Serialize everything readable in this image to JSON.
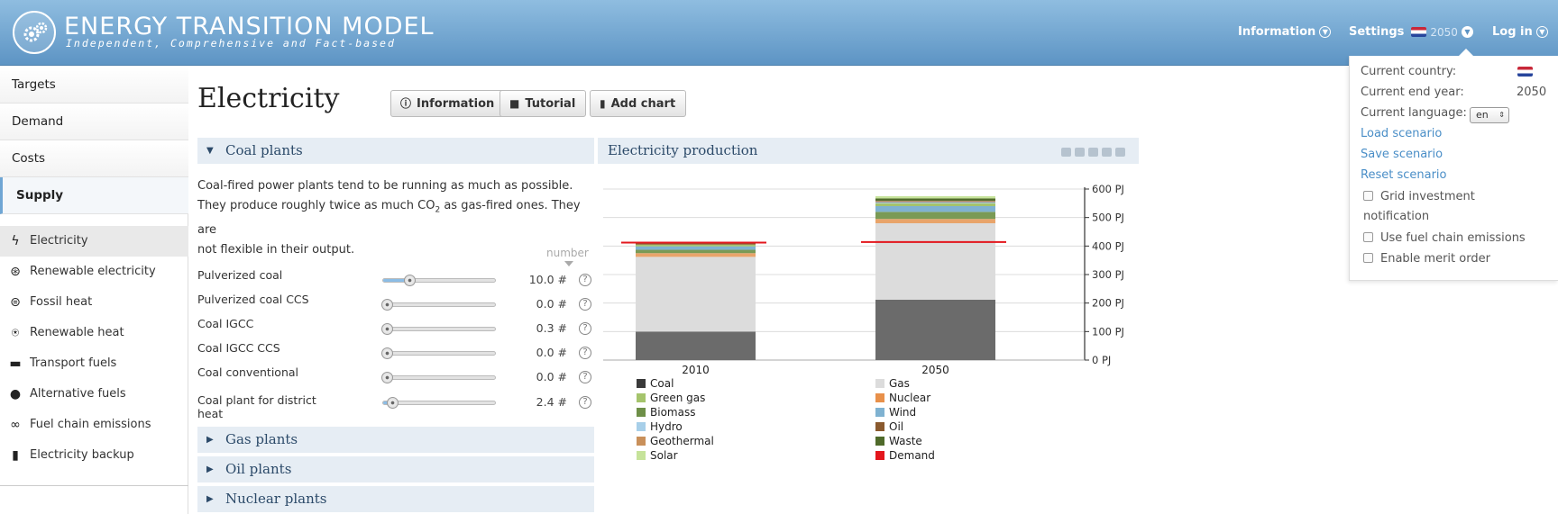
{
  "header": {
    "title": "ENERGY TRANSITION MODEL",
    "subtitle": "Independent, Comprehensive and Fact-based",
    "nav": {
      "information": "Information",
      "settings": "Settings",
      "year": "2050",
      "login": "Log in"
    }
  },
  "settings_panel": {
    "country_label": "Current country:",
    "end_year_label": "Current end year:",
    "end_year_value": "2050",
    "language_label": "Current language:",
    "language_value": "en",
    "load": "Load scenario",
    "save": "Save scenario",
    "reset": "Reset scenario",
    "checks": [
      "Grid investment notification",
      "Use fuel chain emissions",
      "Enable merit order"
    ]
  },
  "sidebar": {
    "tabs": [
      "Targets",
      "Demand",
      "Costs",
      "Supply"
    ],
    "items": [
      {
        "label": "Electricity",
        "icon": "lightning-icon"
      },
      {
        "label": "Renewable electricity",
        "icon": "renewable-electricity-icon"
      },
      {
        "label": "Fossil heat",
        "icon": "fossil-heat-icon"
      },
      {
        "label": "Renewable heat",
        "icon": "renewable-heat-icon"
      },
      {
        "label": "Transport fuels",
        "icon": "car-icon"
      },
      {
        "label": "Alternative fuels",
        "icon": "drop-icon"
      },
      {
        "label": "Fuel chain emissions",
        "icon": "chain-icon"
      },
      {
        "label": "Electricity backup",
        "icon": "battery-icon"
      }
    ]
  },
  "main": {
    "title": "Electricity",
    "buttons": {
      "information": "Information",
      "tutorial": "Tutorial",
      "add_chart": "Add chart"
    },
    "section_open": "Coal plants",
    "description_1": "Coal-fired power plants tend to be running as much as possible.",
    "description_2a": "They produce roughly twice as much CO",
    "description_2sub": "2",
    "description_2b": " as gas-fired ones. They are",
    "description_3": "not flexible in their output.",
    "unit_label": "number",
    "sliders": [
      {
        "label": "Pulverized coal",
        "value": "10.0 #",
        "fraction": 0.2
      },
      {
        "label": "Pulverized coal CCS",
        "value": "0.0 #",
        "fraction": 0.0
      },
      {
        "label": "Coal IGCC",
        "value": "0.3 #",
        "fraction": 0.0
      },
      {
        "label": "Coal IGCC CCS",
        "value": "0.0 #",
        "fraction": 0.0
      },
      {
        "label": "Coal conventional",
        "value": "0.0 #",
        "fraction": 0.0
      },
      {
        "label": "Coal plant for district heat",
        "value": "2.4 #",
        "fraction": 0.05
      }
    ],
    "collapsed_sections": [
      "Gas plants",
      "Oil plants",
      "Nuclear plants"
    ]
  },
  "chart_data": {
    "type": "bar",
    "title": "Electricity production",
    "categories": [
      "2010",
      "2050"
    ],
    "ylim": [
      0,
      600
    ],
    "yticks": [
      "0 PJ",
      "100 PJ",
      "200 PJ",
      "300 PJ",
      "400 PJ",
      "500 PJ",
      "600 PJ"
    ],
    "series": [
      {
        "name": "Coal",
        "color": "#6b6b6b",
        "values": [
          100,
          212
        ]
      },
      {
        "name": "Gas",
        "color": "#dcdcdc",
        "values": [
          262,
          268
        ]
      },
      {
        "name": "Nuclear",
        "color": "#e8a46a",
        "values": [
          13,
          15
        ]
      },
      {
        "name": "Biomass",
        "color": "#7a9a55",
        "values": [
          12,
          25
        ]
      },
      {
        "name": "Wind",
        "color": "#7fb2d1",
        "values": [
          12,
          20
        ]
      },
      {
        "name": "Green gas",
        "color": "#a5c46c",
        "values": [
          6,
          10
        ]
      },
      {
        "name": "Hydro",
        "color": "#a7cfe9",
        "values": [
          0,
          4
        ]
      },
      {
        "name": "Oil",
        "color": "#8a5a2e",
        "values": [
          4,
          3
        ]
      },
      {
        "name": "Geothermal",
        "color": "#c9a27c",
        "values": [
          0,
          2
        ]
      },
      {
        "name": "Waste",
        "color": "#4f6a2a",
        "values": [
          5,
          8
        ]
      },
      {
        "name": "Solar",
        "color": "#c6e39a",
        "values": [
          1,
          8
        ]
      }
    ],
    "demand": {
      "name": "Demand",
      "color": "#e3161c",
      "values": [
        412,
        414
      ]
    },
    "legend": [
      {
        "name": "Coal",
        "color": "#3a3a3a"
      },
      {
        "name": "Gas",
        "color": "#dcdcdc"
      },
      {
        "name": "Green gas",
        "color": "#a5c46c"
      },
      {
        "name": "Nuclear",
        "color": "#e8904a"
      },
      {
        "name": "Biomass",
        "color": "#6e8f48"
      },
      {
        "name": "Wind",
        "color": "#7fb2d1"
      },
      {
        "name": "Hydro",
        "color": "#a7cfe9"
      },
      {
        "name": "Oil",
        "color": "#8a5a2e"
      },
      {
        "name": "Geothermal",
        "color": "#c9905a"
      },
      {
        "name": "Waste",
        "color": "#4f6a2a"
      },
      {
        "name": "Solar",
        "color": "#c6e39a"
      },
      {
        "name": "Demand",
        "color": "#e3161c"
      }
    ]
  }
}
